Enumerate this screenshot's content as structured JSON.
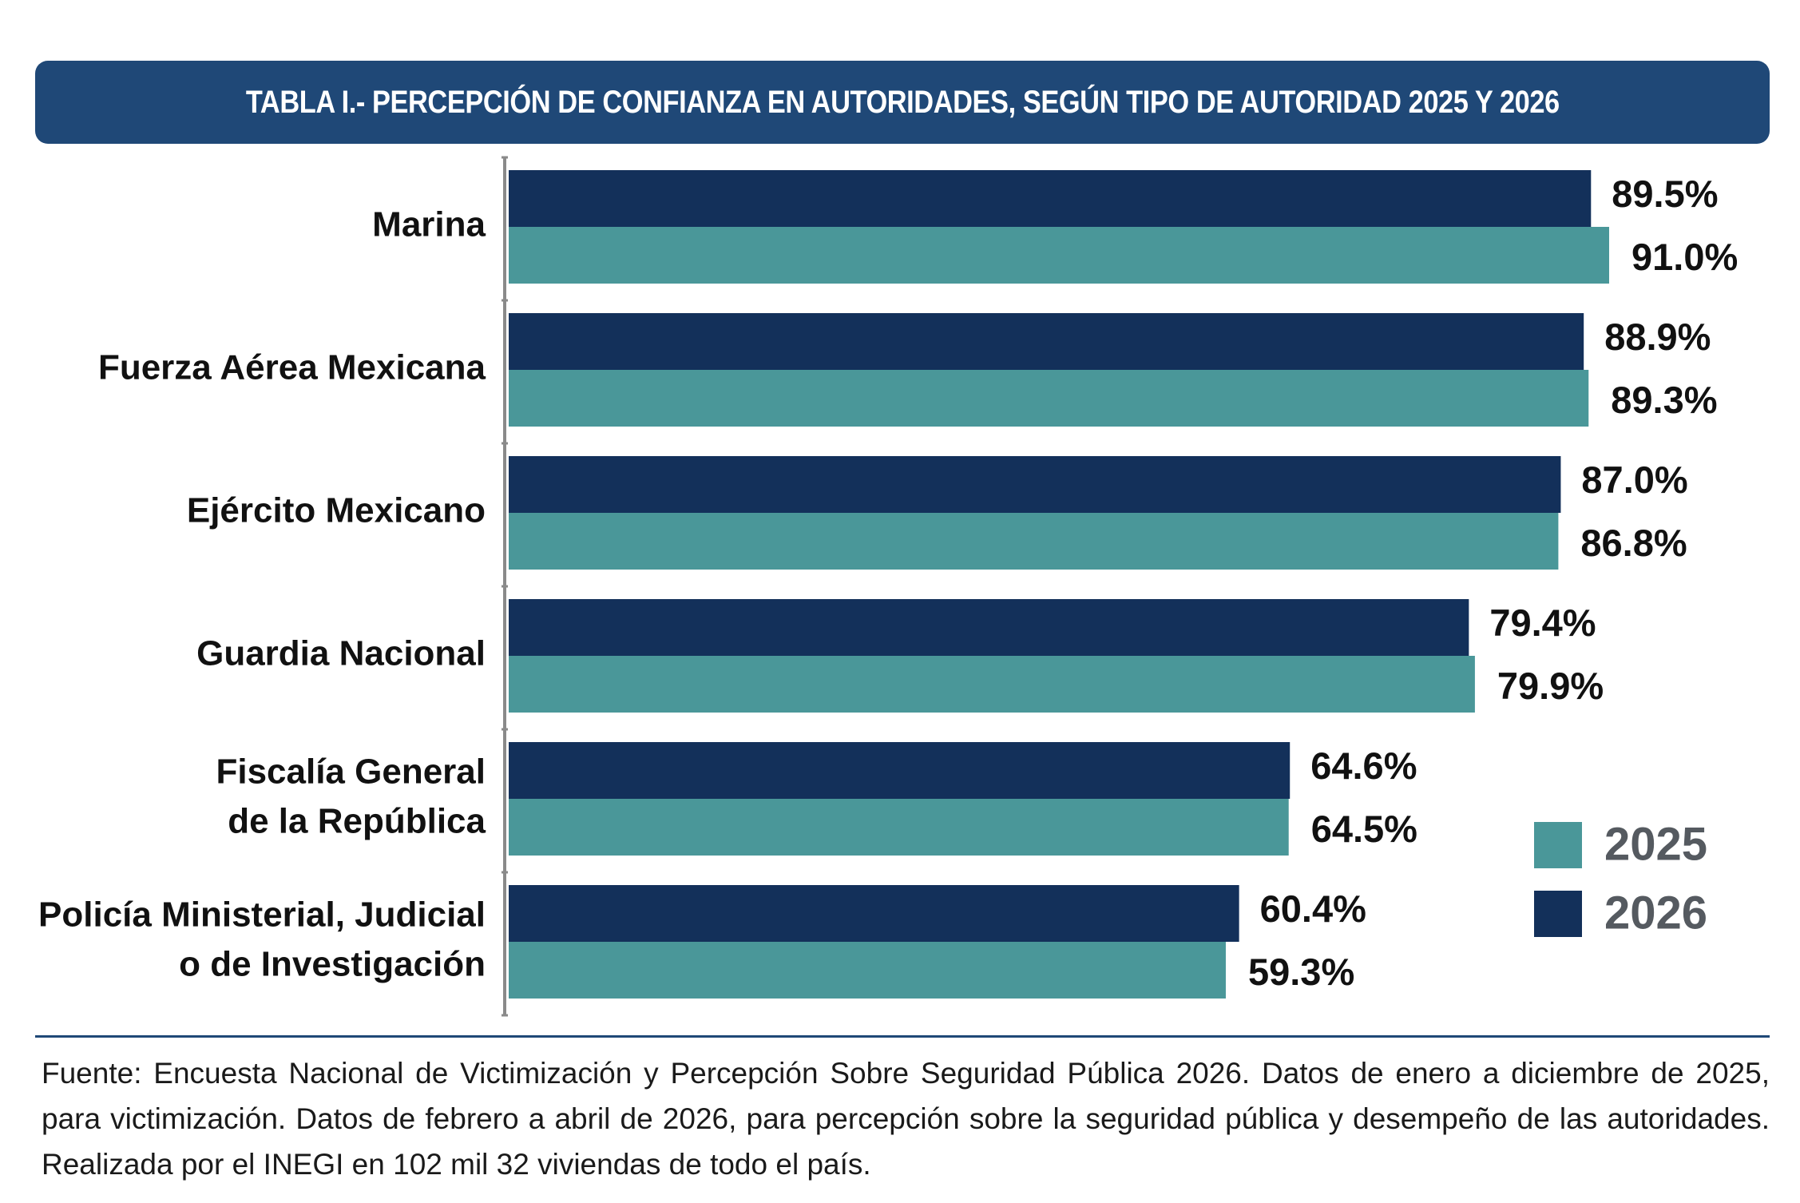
{
  "title": "TABLA I.- PERCEPCIÓN DE CONFIANZA EN AUTORIDADES, SEGÚN TIPO DE AUTORIDAD 2025 Y 2026",
  "colors": {
    "header": "#1f4877",
    "s2026": "#13305a",
    "s2025": "#4a9799"
  },
  "chart_data": {
    "type": "bar",
    "orientation": "horizontal",
    "title": "TABLA I.- PERCEPCIÓN DE CONFIANZA EN AUTORIDADES, SEGÚN TIPO DE AUTORIDAD 2025 Y 2026",
    "categories": [
      [
        "Marina"
      ],
      [
        "Fuerza Aérea Mexicana"
      ],
      [
        "Ejército Mexicano"
      ],
      [
        "Guardia Nacional"
      ],
      [
        "Fiscalía General",
        "de la República"
      ],
      [
        "Policía Ministerial, Judicial",
        "o de Investigación"
      ]
    ],
    "series": [
      {
        "name": "2026",
        "color": "#13305a",
        "values": [
          89.5,
          88.9,
          87.0,
          79.4,
          64.6,
          60.4
        ],
        "labels": [
          "89.5%",
          "88.9%",
          "87.0%",
          "79.4%",
          "64.6%",
          "60.4%"
        ]
      },
      {
        "name": "2025",
        "color": "#4a9799",
        "values": [
          91.0,
          89.3,
          86.8,
          79.9,
          64.5,
          59.3
        ],
        "labels": [
          "91.0%",
          "89.3%",
          "86.8%",
          "79.9%",
          "64.5%",
          "59.3%"
        ]
      }
    ],
    "legend": {
      "position": "bottom-right",
      "order": [
        "2025",
        "2026"
      ]
    },
    "grid": false,
    "xlim": [
      0,
      100
    ]
  },
  "source": "Fuente: Encuesta Nacional de Victimización y Percepción Sobre Seguridad Pública 2026. Datos de enero a diciembre de 2025, para victimización. Datos de febrero a abril de 2026, para percepción sobre la seguridad pública y desempeño de las autoridades. Realizada por el INEGI en 102 mil 32 viviendas de todo el país."
}
